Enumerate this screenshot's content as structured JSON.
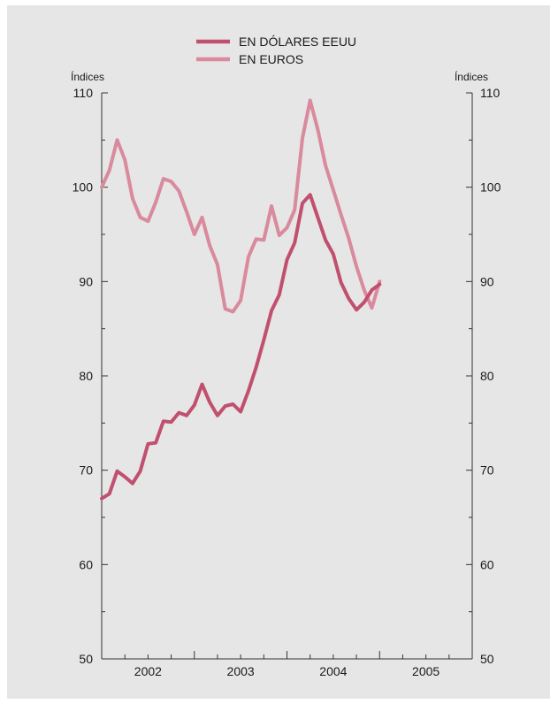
{
  "chart_data": {
    "type": "line",
    "legend_position": "top-center",
    "y_unit_left": "Índices",
    "y_unit_right": "Índices",
    "ylim": [
      50,
      110
    ],
    "yticks": [
      50,
      60,
      70,
      80,
      90,
      100,
      110
    ],
    "year_labels": [
      "2002",
      "2003",
      "2004",
      "2005"
    ],
    "xlim": [
      "2002-01",
      "2005-12"
    ],
    "grid": false,
    "series": [
      {
        "name": "EN DÓLARES EEUU",
        "color": "#c0506e",
        "x": [
          "2002-01",
          "2002-02",
          "2002-03",
          "2002-04",
          "2002-05",
          "2002-06",
          "2002-07",
          "2002-08",
          "2002-09",
          "2002-10",
          "2002-11",
          "2002-12",
          "2003-01",
          "2003-02",
          "2003-03",
          "2003-04",
          "2003-05",
          "2003-06",
          "2003-07",
          "2003-08",
          "2003-09",
          "2003-10",
          "2003-11",
          "2003-12",
          "2004-01",
          "2004-02",
          "2004-03",
          "2004-04",
          "2004-05",
          "2004-06",
          "2004-07",
          "2004-08",
          "2004-09",
          "2004-10",
          "2004-11",
          "2004-12",
          "2005-01"
        ],
        "values": [
          67.0,
          67.5,
          69.9,
          69.3,
          68.6,
          69.9,
          72.8,
          72.9,
          75.2,
          75.1,
          76.1,
          75.8,
          76.9,
          79.1,
          77.2,
          75.8,
          76.8,
          77.0,
          76.2,
          78.4,
          80.9,
          83.8,
          86.9,
          88.6,
          92.3,
          94.1,
          98.3,
          99.2,
          96.8,
          94.4,
          92.9,
          89.9,
          88.2,
          87.0,
          87.8,
          89.1,
          89.7
        ]
      },
      {
        "name": "EN EUROS",
        "color": "#d98a9c",
        "x": [
          "2002-01",
          "2002-02",
          "2002-03",
          "2002-04",
          "2002-05",
          "2002-06",
          "2002-07",
          "2002-08",
          "2002-09",
          "2002-10",
          "2002-11",
          "2002-12",
          "2003-01",
          "2003-02",
          "2003-03",
          "2003-04",
          "2003-05",
          "2003-06",
          "2003-07",
          "2003-08",
          "2003-09",
          "2003-10",
          "2003-11",
          "2003-12",
          "2004-01",
          "2004-02",
          "2004-03",
          "2004-04",
          "2004-05",
          "2004-06",
          "2004-07",
          "2004-08",
          "2004-09",
          "2004-10",
          "2004-11",
          "2004-12",
          "2005-01"
        ],
        "values": [
          100.0,
          101.8,
          105.0,
          102.9,
          98.8,
          96.8,
          96.4,
          98.4,
          100.9,
          100.6,
          99.6,
          97.4,
          95.0,
          96.8,
          93.8,
          91.8,
          87.1,
          86.8,
          88.0,
          92.6,
          94.5,
          94.4,
          98.0,
          94.9,
          95.7,
          97.6,
          105.2,
          109.2,
          106.1,
          102.3,
          99.7,
          97.1,
          94.6,
          91.6,
          89.1,
          87.2,
          90.0
        ]
      }
    ]
  }
}
